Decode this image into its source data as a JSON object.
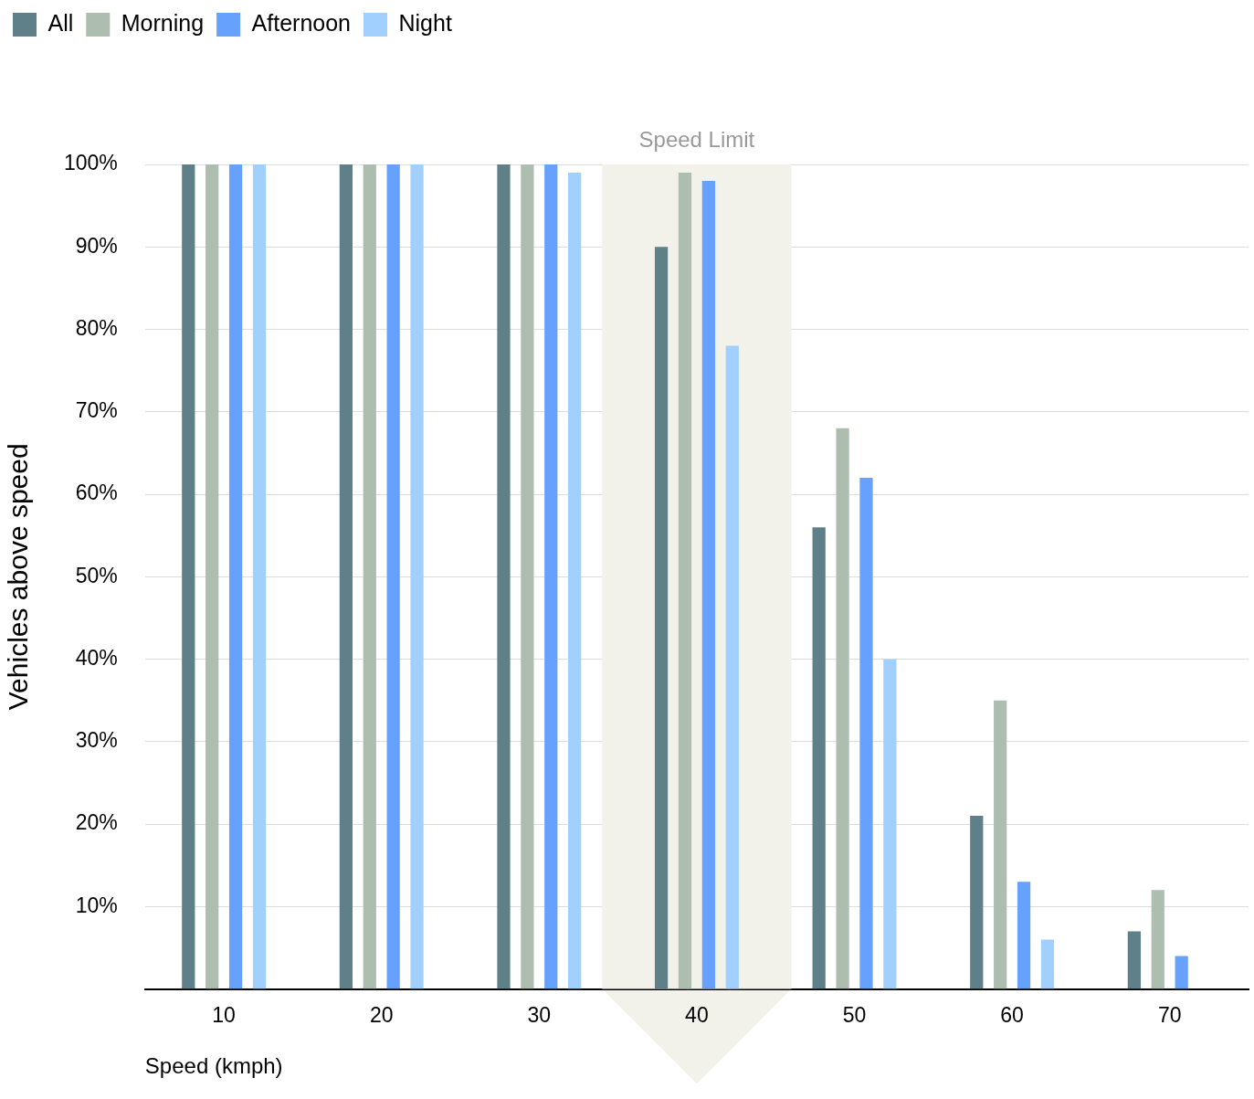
{
  "chart_data": {
    "type": "bar",
    "xlabel": "Speed (kmph)",
    "ylabel": "Vehicles above speed",
    "categories": [
      "10",
      "20",
      "30",
      "40",
      "50",
      "60",
      "70"
    ],
    "series": [
      {
        "name": "All",
        "color": "#5f8088",
        "values": [
          100,
          100,
          100,
          90,
          56,
          21,
          7
        ]
      },
      {
        "name": "Morning",
        "color": "#adbdb0",
        "values": [
          100,
          100,
          100,
          99,
          68,
          35,
          12
        ]
      },
      {
        "name": "Afternoon",
        "color": "#66a1fd",
        "values": [
          100,
          100,
          100,
          98,
          62,
          13,
          4
        ]
      },
      {
        "name": "Night",
        "color": "#a1cffe",
        "values": [
          100,
          100,
          99,
          78,
          40,
          6,
          null
        ]
      }
    ],
    "ylim": [
      0,
      100
    ],
    "yticks": [
      {
        "value": 10,
        "label": "10%"
      },
      {
        "value": 20,
        "label": "20%"
      },
      {
        "value": 30,
        "label": "30%"
      },
      {
        "value": 40,
        "label": "40%"
      },
      {
        "value": 50,
        "label": "50%"
      },
      {
        "value": 60,
        "label": "60%"
      },
      {
        "value": 70,
        "label": "70%"
      },
      {
        "value": 80,
        "label": "80%"
      },
      {
        "value": 90,
        "label": "90%"
      },
      {
        "value": 100,
        "label": "100%"
      }
    ],
    "bands": [
      {
        "axis": "x",
        "from": "40",
        "to": "40",
        "label": "Speed Limit",
        "color": "#f2f1ea"
      }
    ],
    "grid": "y",
    "legend": "top left"
  }
}
